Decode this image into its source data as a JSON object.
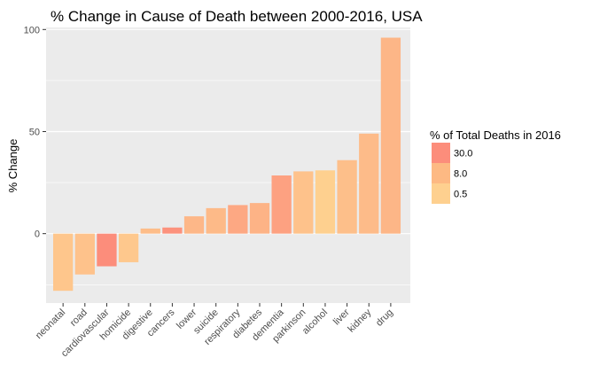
{
  "chart_data": {
    "type": "bar",
    "title": "% Change in Cause of Death between 2000-2016, USA",
    "xlabel": "",
    "ylabel": "% Change",
    "ylim": [
      -34,
      101
    ],
    "yticks": [
      0,
      50,
      100
    ],
    "grid": true,
    "categories": [
      "neonatal",
      "road",
      "cardiovascular",
      "homicide",
      "digestive",
      "cancers",
      "lower",
      "suicide",
      "respiratory",
      "diabetes",
      "dementia",
      "parkinson",
      "alcohol",
      "liver",
      "kidney",
      "drug"
    ],
    "values": [
      -28,
      -20,
      -16,
      -14,
      2.5,
      3,
      8.5,
      12.5,
      14,
      15,
      28.5,
      30.5,
      31,
      36,
      49,
      96
    ],
    "fill_share": [
      0.9,
      1.2,
      30.0,
      0.8,
      1.6,
      22,
      2.3,
      1.9,
      5.6,
      2.9,
      9.0,
      1.2,
      0.5,
      1.4,
      1.8,
      2.4
    ],
    "legend": {
      "title": "% of Total Deaths in 2016",
      "position": "right",
      "entries": [
        {
          "label": "30.0",
          "color": "#fc8d7b"
        },
        {
          "label": "8.0",
          "color": "#fdb983"
        },
        {
          "label": "0.5",
          "color": "#fed08f"
        }
      ]
    },
    "colors": {
      "panel": "#ebebeb",
      "grid": "#ffffff",
      "low": "#fed08f",
      "high": "#fc8d7b"
    }
  }
}
